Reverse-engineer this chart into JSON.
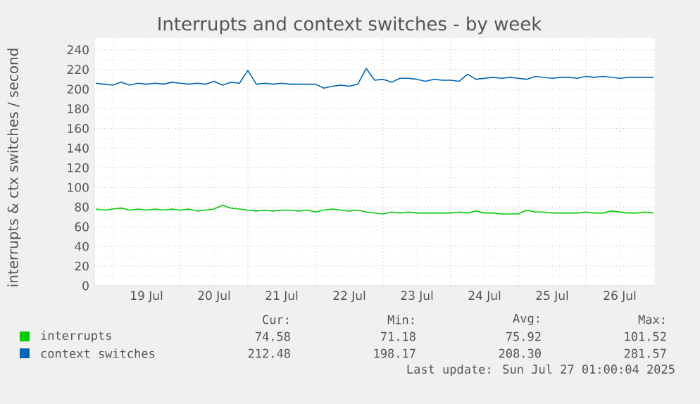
{
  "chart_data": {
    "type": "line",
    "title": "Interrupts and context switches - by week",
    "ylabel": "interrupts & ctx switches / second",
    "x": [
      "2025-07-18T18:00",
      "2025-07-18T21:00",
      "2025-07-19T00:00",
      "2025-07-19T03:00",
      "2025-07-19T06:00",
      "2025-07-19T09:00",
      "2025-07-19T12:00",
      "2025-07-19T15:00",
      "2025-07-19T18:00",
      "2025-07-19T21:00",
      "2025-07-20T00:00",
      "2025-07-20T03:00",
      "2025-07-20T06:00",
      "2025-07-20T09:00",
      "2025-07-20T12:00",
      "2025-07-20T15:00",
      "2025-07-20T18:00",
      "2025-07-20T21:00",
      "2025-07-21T00:00",
      "2025-07-21T03:00",
      "2025-07-21T06:00",
      "2025-07-21T09:00",
      "2025-07-21T12:00",
      "2025-07-21T15:00",
      "2025-07-21T18:00",
      "2025-07-21T21:00",
      "2025-07-22T00:00",
      "2025-07-22T03:00",
      "2025-07-22T06:00",
      "2025-07-22T09:00",
      "2025-07-22T12:00",
      "2025-07-22T15:00",
      "2025-07-22T18:00",
      "2025-07-22T21:00",
      "2025-07-23T00:00",
      "2025-07-23T03:00",
      "2025-07-23T06:00",
      "2025-07-23T09:00",
      "2025-07-23T12:00",
      "2025-07-23T15:00",
      "2025-07-23T18:00",
      "2025-07-23T21:00",
      "2025-07-24T00:00",
      "2025-07-24T03:00",
      "2025-07-24T06:00",
      "2025-07-24T09:00",
      "2025-07-24T12:00",
      "2025-07-24T15:00",
      "2025-07-24T18:00",
      "2025-07-24T21:00",
      "2025-07-25T00:00",
      "2025-07-25T03:00",
      "2025-07-25T06:00",
      "2025-07-25T09:00",
      "2025-07-25T12:00",
      "2025-07-25T15:00",
      "2025-07-25T18:00",
      "2025-07-25T21:00",
      "2025-07-26T00:00",
      "2025-07-26T03:00",
      "2025-07-26T06:00",
      "2025-07-26T09:00",
      "2025-07-26T12:00",
      "2025-07-26T15:00",
      "2025-07-26T18:00",
      "2025-07-26T21:00",
      "2025-07-27T00:00"
    ],
    "series": [
      {
        "name": "interrupts",
        "color": "#00cc00",
        "values": [
          78,
          77,
          78,
          79,
          77,
          78,
          77,
          78,
          77,
          78,
          77,
          78,
          76,
          77,
          78,
          82,
          79,
          78,
          77,
          76,
          77,
          76,
          77,
          77,
          76,
          77,
          75,
          77,
          78,
          77,
          76,
          77,
          75,
          74,
          73,
          75,
          74,
          75,
          74,
          74,
          74,
          74,
          74,
          75,
          74,
          76,
          74,
          74,
          73,
          73,
          73,
          77,
          75,
          75,
          74,
          74,
          74,
          74,
          75,
          74,
          74,
          76,
          75,
          74,
          74,
          75,
          74
        ]
      },
      {
        "name": "context switches",
        "color": "#0066b3",
        "values": [
          206,
          205,
          204,
          207,
          204,
          206,
          205,
          206,
          205,
          207,
          206,
          205,
          206,
          205,
          208,
          204,
          207,
          206,
          219,
          205,
          206,
          205,
          206,
          205,
          205,
          205,
          205,
          201,
          203,
          204,
          203,
          205,
          221,
          209,
          210,
          207,
          211,
          211,
          210,
          208,
          210,
          209,
          209,
          208,
          215,
          210,
          211,
          212,
          211,
          212,
          211,
          210,
          213,
          212,
          211,
          212,
          212,
          211,
          213,
          212,
          213,
          212,
          211,
          212,
          212,
          212,
          212
        ]
      }
    ],
    "xlim": [
      "2025-07-18T17:30",
      "2025-07-27T00:30"
    ],
    "xticks": [
      {
        "value": "2025-07-19T00:00",
        "label": null
      },
      {
        "value": "2025-07-19T12:00",
        "label": "19 Jul"
      },
      {
        "value": "2025-07-20T00:00",
        "label": null
      },
      {
        "value": "2025-07-20T12:00",
        "label": "20 Jul"
      },
      {
        "value": "2025-07-21T00:00",
        "label": null
      },
      {
        "value": "2025-07-21T12:00",
        "label": "21 Jul"
      },
      {
        "value": "2025-07-22T00:00",
        "label": null
      },
      {
        "value": "2025-07-22T12:00",
        "label": "22 Jul"
      },
      {
        "value": "2025-07-23T00:00",
        "label": null
      },
      {
        "value": "2025-07-23T12:00",
        "label": "23 Jul"
      },
      {
        "value": "2025-07-24T00:00",
        "label": null
      },
      {
        "value": "2025-07-24T12:00",
        "label": "24 Jul"
      },
      {
        "value": "2025-07-25T00:00",
        "label": null
      },
      {
        "value": "2025-07-25T12:00",
        "label": "25 Jul"
      },
      {
        "value": "2025-07-26T00:00",
        "label": null
      },
      {
        "value": "2025-07-26T12:00",
        "label": "26 Jul"
      },
      {
        "value": "2025-07-27T00:00",
        "label": null
      }
    ],
    "ylim": [
      0,
      252
    ],
    "yticks": [
      0,
      20,
      40,
      60,
      80,
      100,
      120,
      140,
      160,
      180,
      200,
      220,
      240
    ],
    "grid": true,
    "legend": "bottom",
    "marker": "none",
    "line_style": "solid",
    "annotations": [
      "Cur:",
      "Min:",
      "Avg:",
      "Max:",
      "74.58",
      "71.18",
      "75.92",
      "101.52",
      "212.48",
      "198.17",
      "208.30",
      "281.57",
      "Last update: Sun Jul 27 01:00:04 2025"
    ]
  }
}
